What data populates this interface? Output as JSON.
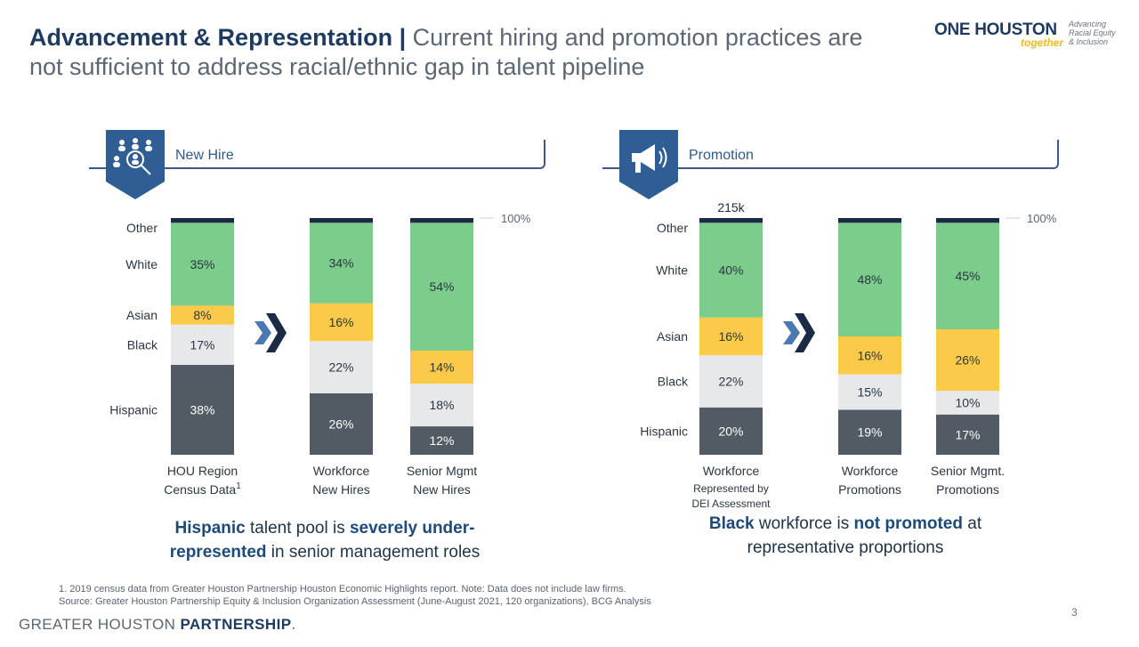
{
  "title": {
    "bold": "Advancement & Representation",
    "sep": " | ",
    "sub": "Current hiring and promotion practices are not sufficient to address racial/ethnic gap in talent pipeline"
  },
  "logo": {
    "one": "ONE HOUSTON",
    "together": "together",
    "tagline": "Advancing Racial Equity & Inclusion"
  },
  "colors": {
    "hispanic": "#525b63",
    "black": "#e6e8ea",
    "asian": "#fbca49",
    "white": "#7ccc8c",
    "other": "#1b2b45",
    "navy": "#1e4a78",
    "arrow": "#1e4a78"
  },
  "panels": [
    {
      "label": "New Hire",
      "icon": "people-search-icon"
    },
    {
      "label": "Promotion",
      "icon": "megaphone-icon"
    }
  ],
  "messages": {
    "left": {
      "a": "Hispanic",
      "b": " talent pool is ",
      "c": "severely under-represented",
      "d": " in senior management roles"
    },
    "right": {
      "a": "Black",
      "b": " workforce is ",
      "c": "not promoted",
      "d": " at representative proportions"
    }
  },
  "chart_data": [
    {
      "type": "bar",
      "stacked": true,
      "total_label": "100%",
      "row_labels": [
        "Other",
        "White",
        "Asian",
        "Black",
        "Hispanic"
      ],
      "categories": [
        {
          "line1": "HOU Region",
          "line2": "Census Data",
          "sup": "1"
        },
        {
          "line1": "Workforce",
          "line2": "New Hires"
        },
        {
          "line1": "Senior Mgmt",
          "line2": "New Hires"
        }
      ],
      "series": [
        {
          "name": "Hispanic",
          "values": [
            38,
            26,
            12
          ]
        },
        {
          "name": "Black",
          "values": [
            17,
            22,
            18
          ]
        },
        {
          "name": "Asian",
          "values": [
            8,
            16,
            14
          ]
        },
        {
          "name": "White",
          "values": [
            35,
            34,
            54
          ]
        },
        {
          "name": "Other",
          "values": [
            2,
            2,
            2
          ]
        }
      ]
    },
    {
      "type": "bar",
      "stacked": true,
      "total_label": "100%",
      "top_label": "215k",
      "row_labels": [
        "Other",
        "White",
        "Asian",
        "Black",
        "Hispanic"
      ],
      "categories": [
        {
          "line1": "Workforce",
          "line2": "Represented by",
          "line3": "DEI Assessment"
        },
        {
          "line1": "Workforce",
          "line2": "Promotions"
        },
        {
          "line1": "Senior Mgmt.",
          "line2": "Promotions"
        }
      ],
      "series": [
        {
          "name": "Hispanic",
          "values": [
            20,
            19,
            17
          ]
        },
        {
          "name": "Black",
          "values": [
            22,
            15,
            10
          ]
        },
        {
          "name": "Asian",
          "values": [
            16,
            16,
            26
          ]
        },
        {
          "name": "White",
          "values": [
            40,
            48,
            45
          ]
        },
        {
          "name": "Other",
          "values": [
            2,
            2,
            2
          ]
        }
      ]
    }
  ],
  "footnotes": {
    "line1": "1. 2019 census data from Greater Houston Partnership Houston Economic Highlights report. Note: Data does not include law firms.",
    "line2": "Source: Greater Houston Partnership Equity & Inclusion Organization Assessment (June-August 2021, 120 organizations), BCG Analysis"
  },
  "brand": {
    "light": "GREATER HOUSTON ",
    "heavy": "PARTNERSHIP",
    "dot": "."
  },
  "page_number": "3"
}
